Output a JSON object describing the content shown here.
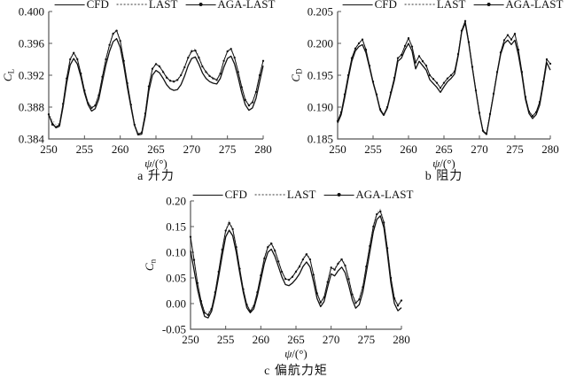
{
  "legend": {
    "items": [
      {
        "label": "CFD",
        "style": "solid"
      },
      {
        "label": "LAST",
        "style": "dotted"
      },
      {
        "label": "AGA-LAST",
        "style": "marker"
      }
    ]
  },
  "colors": {
    "line": "#111111",
    "last_line": "#9a9a9a",
    "axis": "#555555",
    "background": "#ffffff"
  },
  "chart_data": [
    {
      "id": "a",
      "type": "line",
      "caption": "a 升力",
      "xlabel": "ψ/(°)",
      "ylabel": {
        "main": "C",
        "sub": "L"
      },
      "xlim": [
        250,
        280
      ],
      "ylim": [
        0.384,
        0.4
      ],
      "xticks": [
        250,
        255,
        260,
        265,
        270,
        275,
        280
      ],
      "ytick_values": [
        0.384,
        0.388,
        0.392,
        0.396,
        0.4
      ],
      "ytick_labels": [
        "0.384",
        "0.388",
        "0.392",
        "0.396",
        "0.400"
      ],
      "grid": false,
      "legend_position": "top",
      "x": {
        "start": 250,
        "end": 280,
        "step": 0.5
      },
      "series": [
        {
          "name": "CFD",
          "values": [
            0.387,
            0.386,
            0.3854,
            0.3856,
            0.388,
            0.391,
            0.3933,
            0.3941,
            0.3934,
            0.3918,
            0.3898,
            0.3883,
            0.3875,
            0.3878,
            0.389,
            0.3912,
            0.3933,
            0.395,
            0.3962,
            0.3966,
            0.3955,
            0.3932,
            0.3905,
            0.388,
            0.3857,
            0.3845,
            0.3846,
            0.3868,
            0.39,
            0.392,
            0.3926,
            0.3923,
            0.3916,
            0.3908,
            0.3903,
            0.3901,
            0.3902,
            0.3908,
            0.3919,
            0.3932,
            0.3941,
            0.3943,
            0.3934,
            0.3923,
            0.3916,
            0.3912,
            0.391,
            0.3909,
            0.3916,
            0.393,
            0.3941,
            0.3944,
            0.3934,
            0.3917,
            0.3898,
            0.3883,
            0.3876,
            0.3879,
            0.3891,
            0.3912,
            0.3932
          ]
        },
        {
          "name": "LAST",
          "values": [
            0.3872,
            0.3864,
            0.3858,
            0.386,
            0.3884,
            0.3916,
            0.3941,
            0.3949,
            0.3941,
            0.3923,
            0.3902,
            0.3886,
            0.388,
            0.3883,
            0.3896,
            0.3919,
            0.3941,
            0.3959,
            0.3973,
            0.3977,
            0.3964,
            0.3939,
            0.3911,
            0.3884,
            0.3859,
            0.3847,
            0.3849,
            0.3873,
            0.3907,
            0.3929,
            0.3935,
            0.3932,
            0.3925,
            0.3918,
            0.3914,
            0.3913,
            0.3915,
            0.3921,
            0.3931,
            0.3943,
            0.3952,
            0.3953,
            0.3944,
            0.3932,
            0.3925,
            0.392,
            0.3917,
            0.3915,
            0.3923,
            0.3939,
            0.3951,
            0.3954,
            0.3943,
            0.3925,
            0.3906,
            0.389,
            0.3883,
            0.3887,
            0.39,
            0.3921,
            0.3939
          ]
        },
        {
          "name": "AGA-LAST",
          "values": [
            0.3871,
            0.3858,
            0.3855,
            0.3858,
            0.3884,
            0.3916,
            0.394,
            0.3948,
            0.394,
            0.3922,
            0.3901,
            0.3885,
            0.3879,
            0.3882,
            0.3895,
            0.3918,
            0.394,
            0.3958,
            0.3972,
            0.3976,
            0.3963,
            0.3938,
            0.391,
            0.3883,
            0.3858,
            0.3846,
            0.3848,
            0.3872,
            0.3906,
            0.3928,
            0.3934,
            0.3931,
            0.3924,
            0.3917,
            0.3913,
            0.3912,
            0.3914,
            0.392,
            0.393,
            0.3942,
            0.395,
            0.3951,
            0.3942,
            0.3931,
            0.3924,
            0.3919,
            0.3916,
            0.3914,
            0.3922,
            0.3938,
            0.395,
            0.3953,
            0.3942,
            0.3924,
            0.3905,
            0.3889,
            0.3882,
            0.3886,
            0.3899,
            0.392,
            0.3938
          ]
        }
      ]
    },
    {
      "id": "b",
      "type": "line",
      "caption": "b 阻力",
      "xlabel": "ψ/(°)",
      "ylabel": {
        "main": "C",
        "sub": "D"
      },
      "xlim": [
        250,
        280
      ],
      "ylim": [
        0.185,
        0.205
      ],
      "xticks": [
        250,
        255,
        260,
        265,
        270,
        275,
        280
      ],
      "ytick_values": [
        0.185,
        0.19,
        0.195,
        0.2,
        0.205
      ],
      "ytick_labels": [
        "0.185",
        "0.190",
        "0.195",
        "0.200",
        "0.205"
      ],
      "grid": false,
      "legend_position": "top",
      "x": {
        "start": 250,
        "end": 280,
        "step": 0.5
      },
      "series": [
        {
          "name": "CFD",
          "values": [
            0.1875,
            0.1888,
            0.1915,
            0.1945,
            0.1972,
            0.1988,
            0.1995,
            0.1998,
            0.1985,
            0.1962,
            0.1938,
            0.1918,
            0.1895,
            0.1887,
            0.1898,
            0.192,
            0.1942,
            0.1972,
            0.1977,
            0.199,
            0.2,
            0.1988,
            0.196,
            0.1972,
            0.1965,
            0.1958,
            0.1943,
            0.1937,
            0.1931,
            0.1923,
            0.1932,
            0.194,
            0.1945,
            0.1952,
            0.198,
            0.2018,
            0.2032,
            0.2,
            0.1962,
            0.1925,
            0.189,
            0.1862,
            0.1857,
            0.1888,
            0.192,
            0.1953,
            0.1983,
            0.2,
            0.2005,
            0.1998,
            0.2005,
            0.1982,
            0.195,
            0.1912,
            0.189,
            0.1882,
            0.1888,
            0.1903,
            0.1935,
            0.197,
            0.1958
          ]
        },
        {
          "name": "LAST",
          "values": [
            0.1878,
            0.1892,
            0.192,
            0.195,
            0.1977,
            0.1992,
            0.2,
            0.2007,
            0.199,
            0.1965,
            0.194,
            0.192,
            0.1897,
            0.1888,
            0.19,
            0.1923,
            0.1946,
            0.1977,
            0.1982,
            0.1996,
            0.2009,
            0.1995,
            0.197,
            0.198,
            0.1972,
            0.1965,
            0.195,
            0.1944,
            0.1938,
            0.193,
            0.1938,
            0.1945,
            0.195,
            0.1956,
            0.1983,
            0.202,
            0.2036,
            0.2002,
            0.1963,
            0.1926,
            0.1891,
            0.1863,
            0.1858,
            0.1889,
            0.1921,
            0.1955,
            0.1986,
            0.2005,
            0.2013,
            0.2006,
            0.2016,
            0.199,
            0.1955,
            0.1916,
            0.1893,
            0.1886,
            0.1892,
            0.1908,
            0.194,
            0.1975,
            0.1968
          ]
        },
        {
          "name": "AGA-LAST",
          "values": [
            0.1878,
            0.1892,
            0.192,
            0.195,
            0.1977,
            0.1992,
            0.2,
            0.2006,
            0.199,
            0.1965,
            0.194,
            0.192,
            0.1897,
            0.1888,
            0.19,
            0.1923,
            0.1946,
            0.1977,
            0.1982,
            0.1996,
            0.2008,
            0.1995,
            0.197,
            0.198,
            0.1972,
            0.1965,
            0.195,
            0.1944,
            0.1938,
            0.193,
            0.1938,
            0.1945,
            0.195,
            0.1956,
            0.1983,
            0.202,
            0.2035,
            0.2002,
            0.1963,
            0.1926,
            0.1891,
            0.1863,
            0.1858,
            0.1889,
            0.1921,
            0.1955,
            0.1986,
            0.2005,
            0.2013,
            0.2006,
            0.2015,
            0.199,
            0.1955,
            0.1916,
            0.1893,
            0.1886,
            0.1892,
            0.1908,
            0.194,
            0.1975,
            0.1968
          ]
        }
      ]
    },
    {
      "id": "c",
      "type": "line",
      "caption": "c 偏航力矩",
      "xlabel": "ψ/(°)",
      "ylabel": {
        "main": "C",
        "sub": "n"
      },
      "xlim": [
        250,
        280
      ],
      "ylim": [
        -0.05,
        0.2
      ],
      "xticks": [
        250,
        255,
        260,
        265,
        270,
        275,
        280
      ],
      "ytick_values": [
        -0.05,
        0.0,
        0.05,
        0.1,
        0.15,
        0.2
      ],
      "ytick_labels": [
        "-0.05",
        "0.00",
        "0.05",
        "0.10",
        "0.15",
        "0.20"
      ],
      "grid": false,
      "legend_position": "top",
      "x": {
        "start": 250,
        "end": 280,
        "step": 0.5
      },
      "series": [
        {
          "name": "CFD",
          "values": [
            0.103,
            0.065,
            0.028,
            -0.002,
            -0.025,
            -0.028,
            -0.015,
            0.015,
            0.052,
            0.093,
            0.13,
            0.143,
            0.132,
            0.1,
            0.06,
            0.022,
            -0.008,
            -0.018,
            -0.01,
            0.015,
            0.046,
            0.078,
            0.1,
            0.106,
            0.092,
            0.072,
            0.052,
            0.037,
            0.035,
            0.04,
            0.048,
            0.058,
            0.072,
            0.081,
            0.071,
            0.043,
            0.01,
            -0.006,
            0.004,
            0.032,
            0.058,
            0.054,
            0.064,
            0.071,
            0.06,
            0.036,
            0.008,
            -0.009,
            -0.002,
            0.022,
            0.06,
            0.1,
            0.14,
            0.164,
            0.171,
            0.148,
            0.098,
            0.04,
            0.0,
            -0.014,
            -0.008
          ]
        },
        {
          "name": "LAST",
          "values": [
            0.13,
            0.085,
            0.04,
            0.005,
            -0.015,
            -0.018,
            -0.008,
            0.022,
            0.062,
            0.105,
            0.144,
            0.161,
            0.148,
            0.112,
            0.068,
            0.028,
            -0.002,
            -0.013,
            -0.003,
            0.022,
            0.056,
            0.09,
            0.113,
            0.12,
            0.105,
            0.083,
            0.063,
            0.049,
            0.047,
            0.053,
            0.064,
            0.074,
            0.088,
            0.099,
            0.088,
            0.057,
            0.021,
            0.004,
            0.013,
            0.043,
            0.072,
            0.068,
            0.08,
            0.089,
            0.076,
            0.049,
            0.019,
            0.003,
            0.01,
            0.033,
            0.073,
            0.114,
            0.152,
            0.177,
            0.184,
            0.16,
            0.11,
            0.051,
            0.011,
            -0.002,
            0.008
          ]
        },
        {
          "name": "AGA-LAST",
          "values": [
            0.13,
            0.085,
            0.04,
            0.005,
            -0.018,
            -0.022,
            -0.01,
            0.022,
            0.062,
            0.105,
            0.142,
            0.157,
            0.145,
            0.11,
            0.068,
            0.028,
            -0.002,
            -0.015,
            -0.005,
            0.022,
            0.055,
            0.088,
            0.11,
            0.117,
            0.103,
            0.082,
            0.062,
            0.048,
            0.046,
            0.052,
            0.062,
            0.072,
            0.086,
            0.096,
            0.086,
            0.056,
            0.02,
            0.002,
            0.012,
            0.042,
            0.07,
            0.066,
            0.078,
            0.086,
            0.074,
            0.048,
            0.018,
            0.001,
            0.008,
            0.032,
            0.072,
            0.112,
            0.15,
            0.174,
            0.18,
            0.158,
            0.108,
            0.05,
            0.01,
            -0.004,
            0.006
          ]
        }
      ]
    }
  ]
}
